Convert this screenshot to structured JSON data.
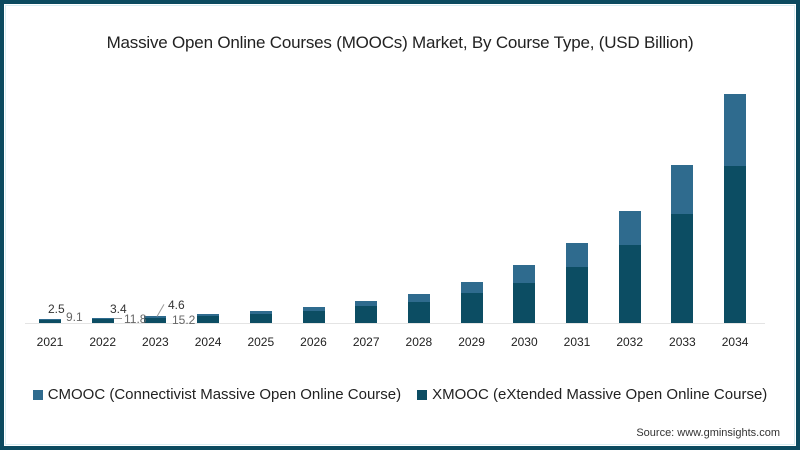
{
  "chart_data": {
    "type": "bar",
    "stacked": true,
    "title": "Massive Open Online Courses (MOOCs) Market, By Course Type, (USD Billion)",
    "xlabel": "",
    "ylabel": "USD Billion",
    "categories": [
      "2021",
      "2022",
      "2023",
      "2024",
      "2025",
      "2026",
      "2027",
      "2028",
      "2029",
      "2030",
      "2031",
      "2032",
      "2033",
      "2034"
    ],
    "series": [
      {
        "name": "XMOOC (eXtended Massive Open Online Course)",
        "color": "#0c4d63",
        "values": [
          9.1,
          11.8,
          15.2,
          21,
          28,
          37,
          50,
          63,
          90,
          120,
          168,
          234,
          326,
          467
        ]
      },
      {
        "name": "CMOOC (Connectivist Massive Open Online Course)",
        "color": "#2f6b8e",
        "values": [
          2.5,
          3.4,
          4.6,
          6,
          8,
          11,
          15,
          24,
          32,
          52,
          72,
          99,
          146,
          216
        ]
      }
    ],
    "data_labels": [
      {
        "year": "2021",
        "CMOOC": "2.5",
        "XMOOC": "9.1"
      },
      {
        "year": "2022",
        "CMOOC": "3.4",
        "XMOOC": "11.8"
      },
      {
        "year": "2023",
        "CMOOC": "4.6",
        "XMOOC": "15.2"
      }
    ],
    "grid": false,
    "y_axis_visible": false,
    "legend_position": "bottom",
    "ylim": [
      0,
      700
    ]
  },
  "title": "Massive Open Online Courses (MOOCs) Market, By Course Type, (USD Billion)",
  "legend": [
    {
      "label": "CMOOC (Connectivist Massive Open Online Course)",
      "color": "#2f6b8e"
    },
    {
      "label": "XMOOC (eXtended Massive Open Online Course)",
      "color": "#0c4d63"
    }
  ],
  "labels": {
    "c2021": "2.5",
    "x2021": "9.1",
    "c2022": "3.4",
    "x2022": "11.8",
    "c2023": "4.6",
    "x2023": "15.2"
  },
  "source": "Source: www.gminsights.com"
}
